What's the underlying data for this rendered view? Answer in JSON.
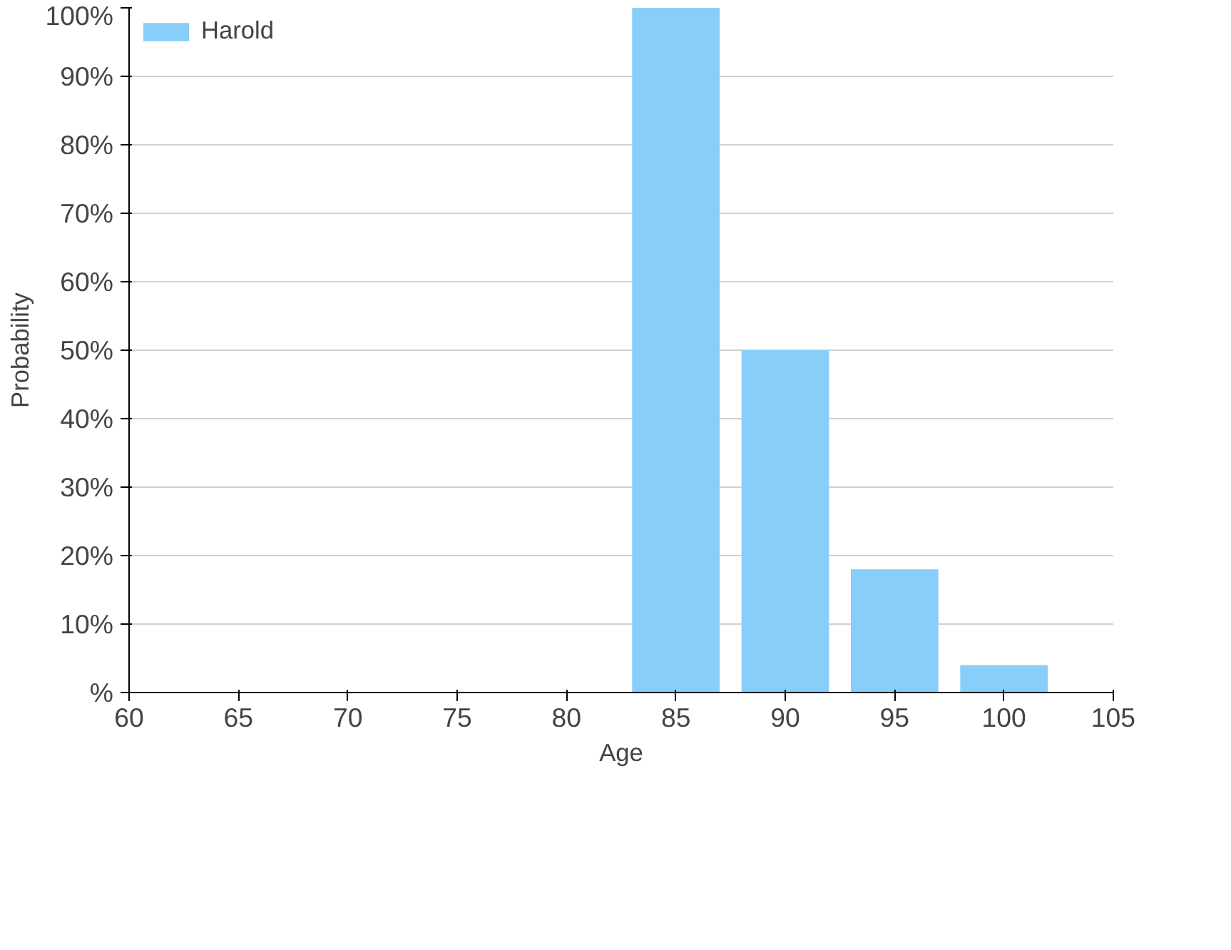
{
  "chart_data": {
    "type": "bar",
    "xlabel": "Age",
    "ylabel": "Probability",
    "x": [
      85,
      90,
      95,
      100
    ],
    "series": [
      {
        "name": "Harold",
        "color": "#87cefa",
        "values": [
          100,
          50,
          18,
          4
        ]
      }
    ],
    "xlim": [
      60,
      105
    ],
    "xticks": [
      60,
      65,
      70,
      75,
      80,
      85,
      90,
      95,
      100,
      105
    ],
    "ylim": [
      0,
      100
    ],
    "yticks": [
      {
        "value": 0,
        "label": "%"
      },
      {
        "value": 10,
        "label": "10%"
      },
      {
        "value": 20,
        "label": "20%"
      },
      {
        "value": 30,
        "label": "30%"
      },
      {
        "value": 40,
        "label": "40%"
      },
      {
        "value": 50,
        "label": "50%"
      },
      {
        "value": 60,
        "label": "60%"
      },
      {
        "value": 70,
        "label": "70%"
      },
      {
        "value": 80,
        "label": "80%"
      },
      {
        "value": 90,
        "label": "90%"
      },
      {
        "value": 100,
        "label": "100%"
      }
    ],
    "grid": "y",
    "legend": "top left"
  }
}
